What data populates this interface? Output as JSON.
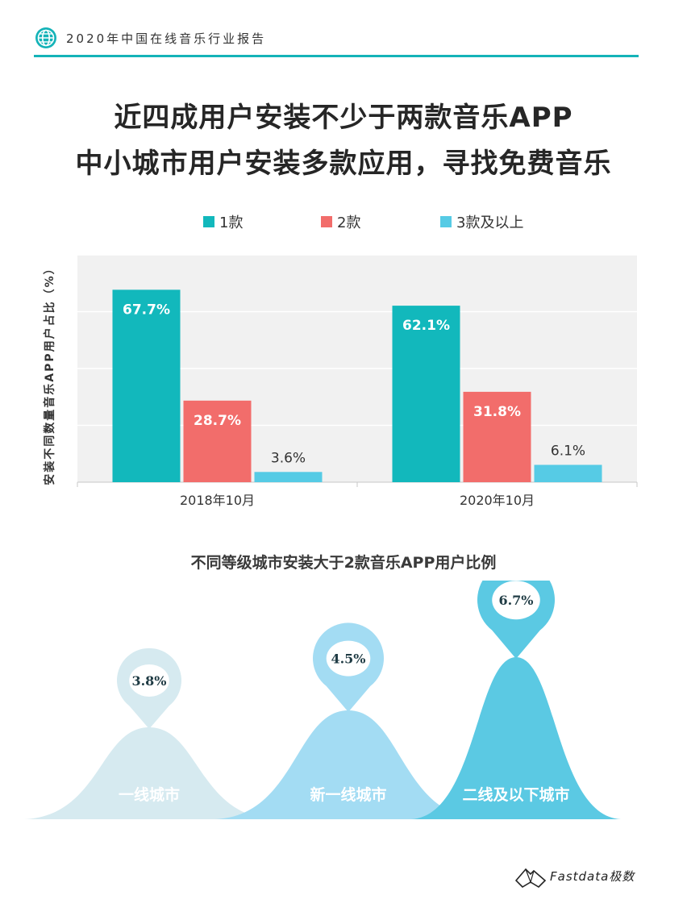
{
  "header": {
    "title": "2020年中国在线音乐行业报告"
  },
  "headline": {
    "line1": "近四成用户安装不少于两款音乐APP",
    "line2": "中小城市用户安装多款应用，寻找免费音乐"
  },
  "chart_data": [
    {
      "type": "bar",
      "ylabel": "安装不同数量音乐APP用户占比（%）",
      "categories": [
        "2018年10月",
        "2020年10月"
      ],
      "series": [
        {
          "name": "1款",
          "color": "#12b8bc",
          "values": [
            67.7,
            62.1
          ],
          "labels": [
            "67.7%",
            "62.1%"
          ]
        },
        {
          "name": "2款",
          "color": "#f26d6b",
          "values": [
            28.7,
            31.8
          ],
          "labels": [
            "28.7%",
            "31.8%"
          ]
        },
        {
          "name": "3款及以上",
          "color": "#56cbe5",
          "values": [
            3.6,
            6.1
          ],
          "labels": [
            "3.6%",
            "6.1%"
          ]
        }
      ],
      "ylim": [
        0,
        80
      ],
      "grid": true,
      "legend": "top"
    },
    {
      "type": "bar",
      "title": "不同等级城市安装大于2款音乐APP用户比例",
      "categories": [
        "一线城市",
        "新一线城市",
        "二线及以下城市"
      ],
      "values": [
        3.8,
        4.5,
        6.7
      ],
      "labels": [
        "3.8%",
        "4.5%",
        "6.7%"
      ],
      "colors": [
        "#d6eaf0",
        "#a3dcf3",
        "#5bc9e3"
      ]
    }
  ],
  "logo": {
    "text": "Fastdata极数"
  }
}
